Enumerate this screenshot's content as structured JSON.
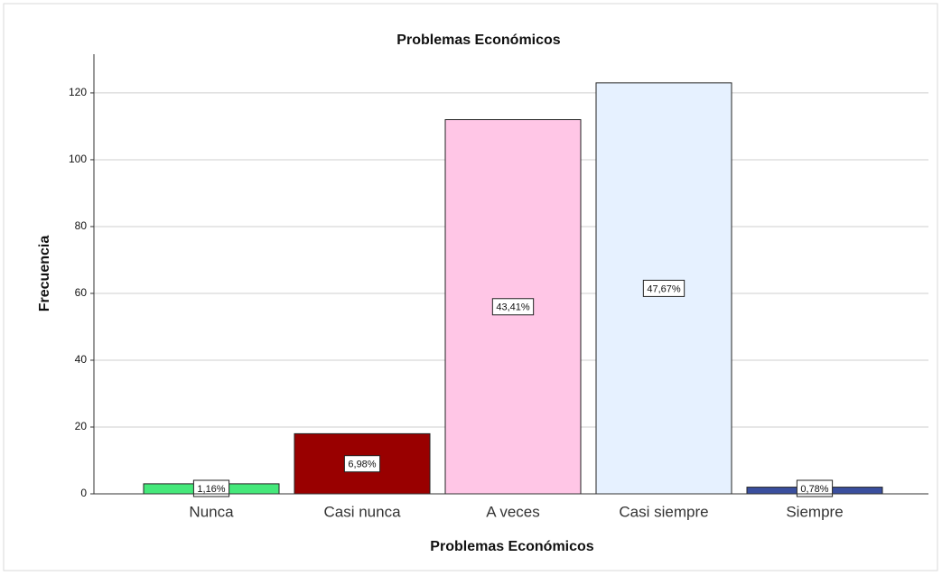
{
  "chart_data": {
    "type": "bar",
    "title": "Problemas Económicos",
    "x_label": "Problemas Económicos",
    "y_label": "Frecuencia",
    "categories": [
      "Nunca",
      "Casi nunca",
      "A veces",
      "Casi siempre",
      "Siempre"
    ],
    "values": [
      3,
      18,
      112,
      123,
      2
    ],
    "percent_labels": [
      "1,16%",
      "6,98%",
      "43,41%",
      "47,67%",
      "0,78%"
    ],
    "colors": [
      "#45e87a",
      "#990000",
      "#ffc6e6",
      "#e6f1ff",
      "#3a4f9e"
    ],
    "ylim": [
      0,
      131.6
    ],
    "yticks": [
      0,
      20,
      40,
      60,
      80,
      100,
      120
    ],
    "grid": true
  }
}
